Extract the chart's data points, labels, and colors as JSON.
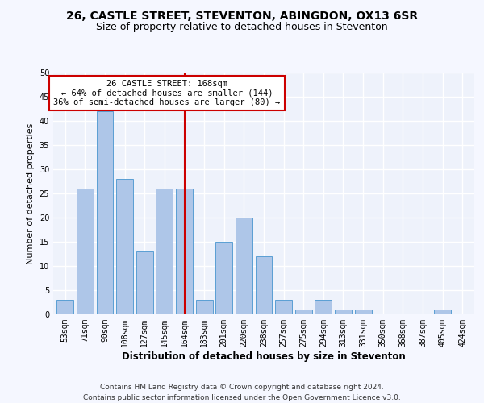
{
  "title": "26, CASTLE STREET, STEVENTON, ABINGDON, OX13 6SR",
  "subtitle": "Size of property relative to detached houses in Steventon",
  "xlabel": "Distribution of detached houses by size in Steventon",
  "ylabel": "Number of detached properties",
  "categories": [
    "53sqm",
    "71sqm",
    "90sqm",
    "108sqm",
    "127sqm",
    "145sqm",
    "164sqm",
    "183sqm",
    "201sqm",
    "220sqm",
    "238sqm",
    "257sqm",
    "275sqm",
    "294sqm",
    "313sqm",
    "331sqm",
    "350sqm",
    "368sqm",
    "387sqm",
    "405sqm",
    "424sqm"
  ],
  "values": [
    3,
    26,
    42,
    28,
    13,
    26,
    26,
    3,
    15,
    20,
    12,
    3,
    1,
    3,
    1,
    1,
    0,
    0,
    0,
    1,
    0
  ],
  "bar_color": "#aec6e8",
  "bar_edge_color": "#5a9fd4",
  "vline_x_index": 6,
  "vline_color": "#cc0000",
  "annotation_text": "26 CASTLE STREET: 168sqm\n← 64% of detached houses are smaller (144)\n36% of semi-detached houses are larger (80) →",
  "annotation_box_color": "#ffffff",
  "annotation_box_edge": "#cc0000",
  "ylim": [
    0,
    50
  ],
  "yticks": [
    0,
    5,
    10,
    15,
    20,
    25,
    30,
    35,
    40,
    45,
    50
  ],
  "footer": "Contains HM Land Registry data © Crown copyright and database right 2024.\nContains public sector information licensed under the Open Government Licence v3.0.",
  "bg_color": "#eef2fb",
  "grid_color": "#ffffff",
  "title_fontsize": 10,
  "subtitle_fontsize": 9,
  "xlabel_fontsize": 8.5,
  "ylabel_fontsize": 8,
  "tick_fontsize": 7,
  "footer_fontsize": 6.5,
  "annotation_fontsize": 7.5
}
